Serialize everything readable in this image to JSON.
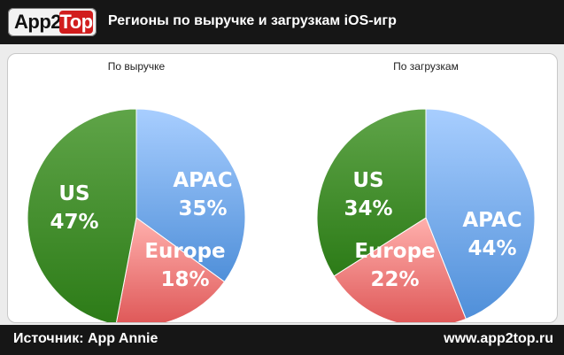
{
  "header": {
    "logo_left": "App2",
    "logo_right": "Top",
    "title": "Регионы по выручке и загрузкам iOS-игр"
  },
  "footer": {
    "source": "Источник: App Annie",
    "site": "www.app2top.ru"
  },
  "colors": {
    "APAC": "#7fb4ee",
    "Europe": "#ee8080",
    "US": "#4c9432"
  },
  "chart_data": [
    {
      "type": "pie",
      "title": "По выручке",
      "slices": [
        {
          "label": "APAC",
          "value": 35,
          "display": "35%"
        },
        {
          "label": "Europe",
          "value": 18,
          "display": "18%"
        },
        {
          "label": "US",
          "value": 47,
          "display": "47%"
        }
      ]
    },
    {
      "type": "pie",
      "title": "По загрузкам",
      "slices": [
        {
          "label": "APAC",
          "value": 44,
          "display": "44%"
        },
        {
          "label": "Europe",
          "value": 22,
          "display": "22%"
        },
        {
          "label": "US",
          "value": 34,
          "display": "34%"
        }
      ]
    }
  ]
}
